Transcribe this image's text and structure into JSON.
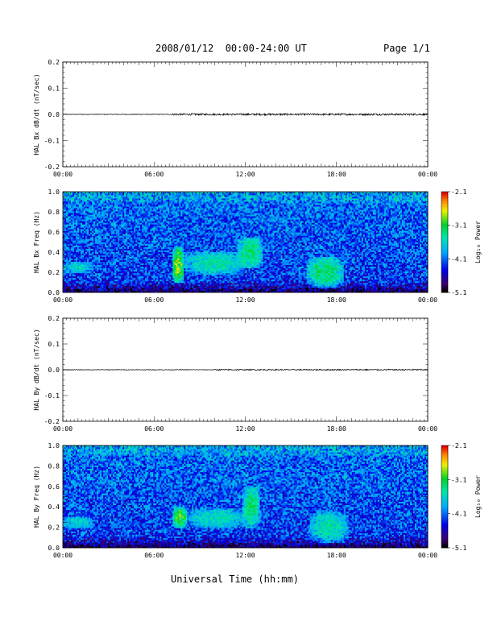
{
  "header": {
    "title": "2008/01/12  00:00-24:00 UT",
    "page": "Page 1/1"
  },
  "footer": {
    "xlabel": "Universal Time (hh:mm)"
  },
  "chart_data": [
    {
      "type": "line",
      "ylabel": "HAL Bx dB/dt (nT/sec)",
      "ylim": [
        -0.2,
        0.2
      ],
      "yticks": [
        "0.2",
        "0.1",
        "0.0",
        "-0.1",
        "-0.2"
      ],
      "xticks": [
        "00:00",
        "06:00",
        "12:00",
        "18:00",
        "00:00"
      ],
      "xlim_hours": [
        0,
        24
      ],
      "series": [
        {
          "values_hint": "near-zero trace, small noise, larger fluctuations 07:00-24:00",
          "level": 0.0
        }
      ]
    },
    {
      "type": "heatmap",
      "ylabel": "HAL Bx Freq (Hz)",
      "ylim": [
        0.0,
        1.0
      ],
      "yticks": [
        "1.0",
        "0.8",
        "0.6",
        "0.4",
        "0.2",
        "0.0"
      ],
      "xticks": [
        "00:00",
        "06:00",
        "12:00",
        "18:00",
        "00:00"
      ],
      "xlim_hours": [
        0,
        24
      ],
      "colorbar": {
        "label": "Log₁₀ Power",
        "ticks": [
          "-2.1",
          "-3.1",
          "-4.1",
          "-5.1"
        ],
        "range": [
          -5.1,
          -2.1
        ]
      },
      "features": [
        {
          "t_start": 7.2,
          "t_end": 8.0,
          "f_low": 0.1,
          "f_high": 0.45,
          "peak": -2.3
        },
        {
          "t_start": 8.0,
          "t_end": 12.0,
          "f_low": 0.18,
          "f_high": 0.4,
          "peak": -3.2
        },
        {
          "t_start": 11.5,
          "t_end": 13.2,
          "f_low": 0.25,
          "f_high": 0.55,
          "peak": -3.0
        },
        {
          "t_start": 16.0,
          "t_end": 18.5,
          "f_low": 0.05,
          "f_high": 0.35,
          "peak": -2.9
        },
        {
          "t_start": 0.0,
          "t_end": 2.0,
          "f_low": 0.2,
          "f_high": 0.3,
          "peak": -3.4
        }
      ]
    },
    {
      "type": "line",
      "ylabel": "HAL By dB/dt (nT/sec)",
      "ylim": [
        -0.2,
        0.2
      ],
      "yticks": [
        "0.2",
        "0.1",
        "0.0",
        "-0.1",
        "-0.2"
      ],
      "xticks": [
        "00:00",
        "06:00",
        "12:00",
        "18:00",
        "00:00"
      ],
      "xlim_hours": [
        0,
        24
      ],
      "series": [
        {
          "values_hint": "near-zero trace, small noise",
          "level": 0.0
        }
      ]
    },
    {
      "type": "heatmap",
      "ylabel": "HAL By Freq (Hz)",
      "ylim": [
        0.0,
        1.0
      ],
      "yticks": [
        "1.0",
        "0.8",
        "0.6",
        "0.4",
        "0.2",
        "0.0"
      ],
      "xticks": [
        "00:00",
        "06:00",
        "12:00",
        "18:00",
        "00:00"
      ],
      "xlim_hours": [
        0,
        24
      ],
      "colorbar": {
        "label": "Log₁₀ Power",
        "ticks": [
          "-2.1",
          "-3.1",
          "-4.1",
          "-5.1"
        ],
        "range": [
          -5.1,
          -2.1
        ]
      },
      "features": [
        {
          "t_start": 7.2,
          "t_end": 8.2,
          "f_low": 0.2,
          "f_high": 0.4,
          "peak": -2.6
        },
        {
          "t_start": 8.2,
          "t_end": 12.0,
          "f_low": 0.2,
          "f_high": 0.38,
          "peak": -3.3
        },
        {
          "t_start": 11.8,
          "t_end": 13.0,
          "f_low": 0.2,
          "f_high": 0.6,
          "peak": -3.0
        },
        {
          "t_start": 16.2,
          "t_end": 18.8,
          "f_low": 0.05,
          "f_high": 0.35,
          "peak": -3.2
        },
        {
          "t_start": 0.0,
          "t_end": 2.0,
          "f_low": 0.2,
          "f_high": 0.3,
          "peak": -3.4
        }
      ]
    }
  ]
}
